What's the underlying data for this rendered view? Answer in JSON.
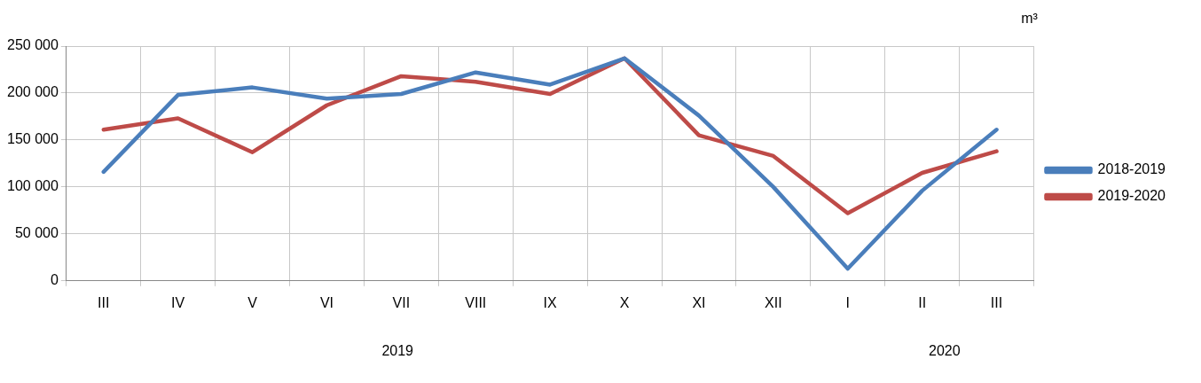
{
  "chart_data": {
    "type": "line",
    "ylabel": "m³",
    "categories": [
      "III",
      "IV",
      "V",
      "VI",
      "VII",
      "VIII",
      "IX",
      "X",
      "XI",
      "XII",
      "I",
      "II",
      "III"
    ],
    "series": [
      {
        "name": "2018-2019",
        "color": "#4a7ebb",
        "values": [
          116000,
          198000,
          206000,
          194000,
          199000,
          222000,
          209000,
          237000,
          176000,
          100000,
          13000,
          96000,
          161000
        ]
      },
      {
        "name": "2019-2020",
        "color": "#be4b48",
        "values": [
          161000,
          173000,
          137000,
          187000,
          218000,
          212000,
          199000,
          237000,
          155000,
          133000,
          72000,
          115000,
          138000
        ]
      }
    ],
    "ylim": [
      0,
      250000
    ],
    "yticks": [
      {
        "value": 0,
        "label": "0"
      },
      {
        "value": 50000,
        "label": "50 000"
      },
      {
        "value": 100000,
        "label": "100 000"
      },
      {
        "value": 150000,
        "label": "150 000"
      },
      {
        "value": 200000,
        "label": "200 000"
      },
      {
        "value": 250000,
        "label": "250 000"
      }
    ],
    "annotations": [
      "2019",
      "2020"
    ],
    "grid": true,
    "legend": "right",
    "marker": "none",
    "line_style": "solid"
  }
}
